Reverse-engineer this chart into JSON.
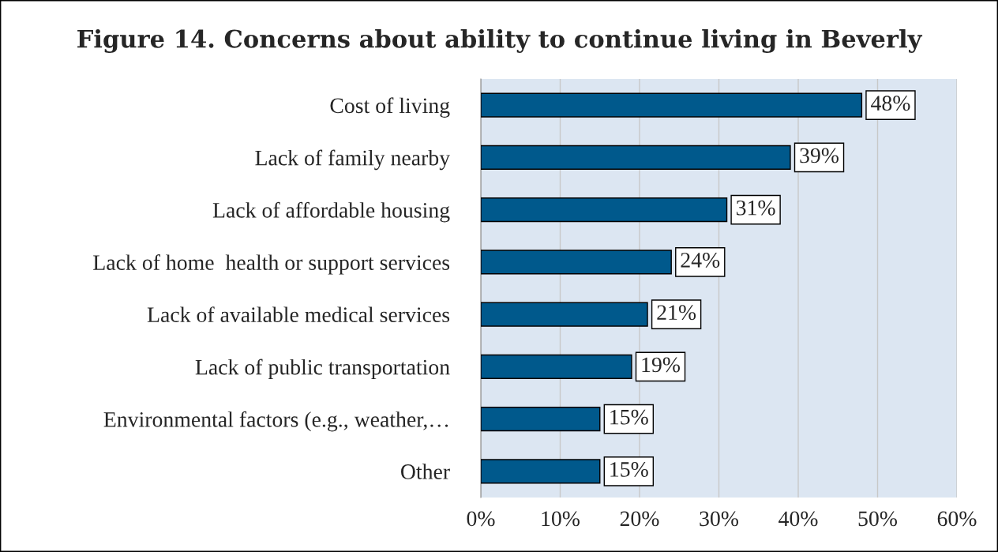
{
  "chart_data": {
    "type": "bar",
    "orientation": "horizontal",
    "title": "Figure 14. Concerns about ability to continue living in Beverly",
    "categories": [
      "Cost of living",
      "Lack of family nearby",
      "Lack of affordable housing",
      "Lack of home  health or support services",
      "Lack of available medical services",
      "Lack of public transportation",
      "Environmental factors (e.g., weather,…",
      "Other"
    ],
    "values": [
      48,
      39,
      31,
      24,
      21,
      19,
      15,
      15
    ],
    "value_labels": [
      "48%",
      "39%",
      "31%",
      "24%",
      "21%",
      "19%",
      "15%",
      "15%"
    ],
    "color": "#00598c",
    "xlim": [
      0,
      60
    ],
    "xticks": [
      {
        "value": 0,
        "label": "0%"
      },
      {
        "value": 10,
        "label": "10%"
      },
      {
        "value": 20,
        "label": "20%"
      },
      {
        "value": 30,
        "label": "30%"
      },
      {
        "value": 40,
        "label": "40%"
      },
      {
        "value": 50,
        "label": "50%"
      },
      {
        "value": 60,
        "label": "60%"
      }
    ],
    "grid": "x",
    "legend": false
  }
}
